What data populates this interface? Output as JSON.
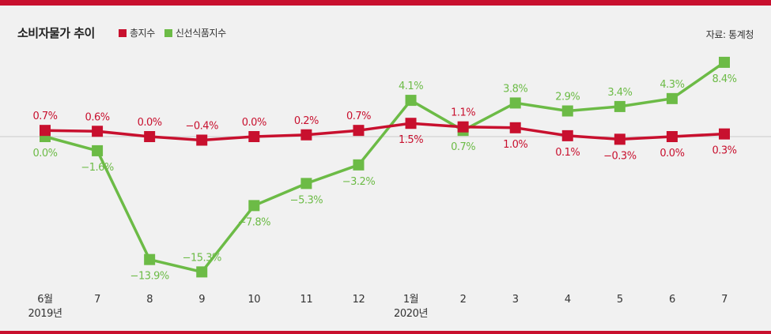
{
  "header": {
    "title": "소비자물가 추이",
    "source": "자료: 통계청"
  },
  "colors": {
    "accent_bar": "#c8102e",
    "series_total": "#c8102e",
    "series_fresh": "#6cbb46",
    "zero_line": "#cccccc"
  },
  "chart_data": {
    "type": "line",
    "x_tick_labels": [
      [
        "6월",
        "2019년"
      ],
      [
        "7"
      ],
      [
        "8"
      ],
      [
        "9"
      ],
      [
        "10"
      ],
      [
        "11"
      ],
      [
        "12"
      ],
      [
        "1월",
        "2020년"
      ],
      [
        "2"
      ],
      [
        "3"
      ],
      [
        "4"
      ],
      [
        "5"
      ],
      [
        "6"
      ],
      [
        "7"
      ]
    ],
    "series": [
      {
        "name": "총지수",
        "values": [
          0.7,
          0.6,
          0.0,
          -0.4,
          0.0,
          0.2,
          0.7,
          1.5,
          1.1,
          1.0,
          0.1,
          -0.3,
          0.0,
          0.3
        ],
        "labels": [
          "0.7%",
          "0.6%",
          "0.0%",
          "-0.4%",
          "0.0%",
          "0.2%",
          "0.7%",
          "1.5%",
          "1.1%",
          "1.0%",
          "0.1%",
          "-0.3%",
          "0.0%",
          "0.3%"
        ],
        "label_pos": [
          "above",
          "above",
          "above",
          "above",
          "above",
          "above",
          "above",
          "below",
          "above",
          "below",
          "below",
          "below",
          "below",
          "below"
        ]
      },
      {
        "name": "신선식품지수",
        "values": [
          0.0,
          -1.6,
          -13.9,
          -15.3,
          -7.8,
          -5.3,
          -3.2,
          4.1,
          0.7,
          3.8,
          2.9,
          3.4,
          4.3,
          8.4
        ],
        "labels": [
          "0.0%",
          "-1.6%",
          "-13.9%",
          "-15.3%",
          "-7.8%",
          "-5.3%",
          "-3.2%",
          "4.1%",
          "0.7%",
          "3.8%",
          "2.9%",
          "3.4%",
          "4.3%",
          "8.4%"
        ],
        "label_pos": [
          "below",
          "below",
          "below",
          "above",
          "below",
          "below",
          "below",
          "above",
          "below",
          "above",
          "above",
          "above",
          "above",
          "below"
        ]
      }
    ],
    "ylim": [
      -15.3,
      8.4
    ],
    "xlabel": "",
    "ylabel": "",
    "grid": false,
    "legend": "top-left"
  }
}
